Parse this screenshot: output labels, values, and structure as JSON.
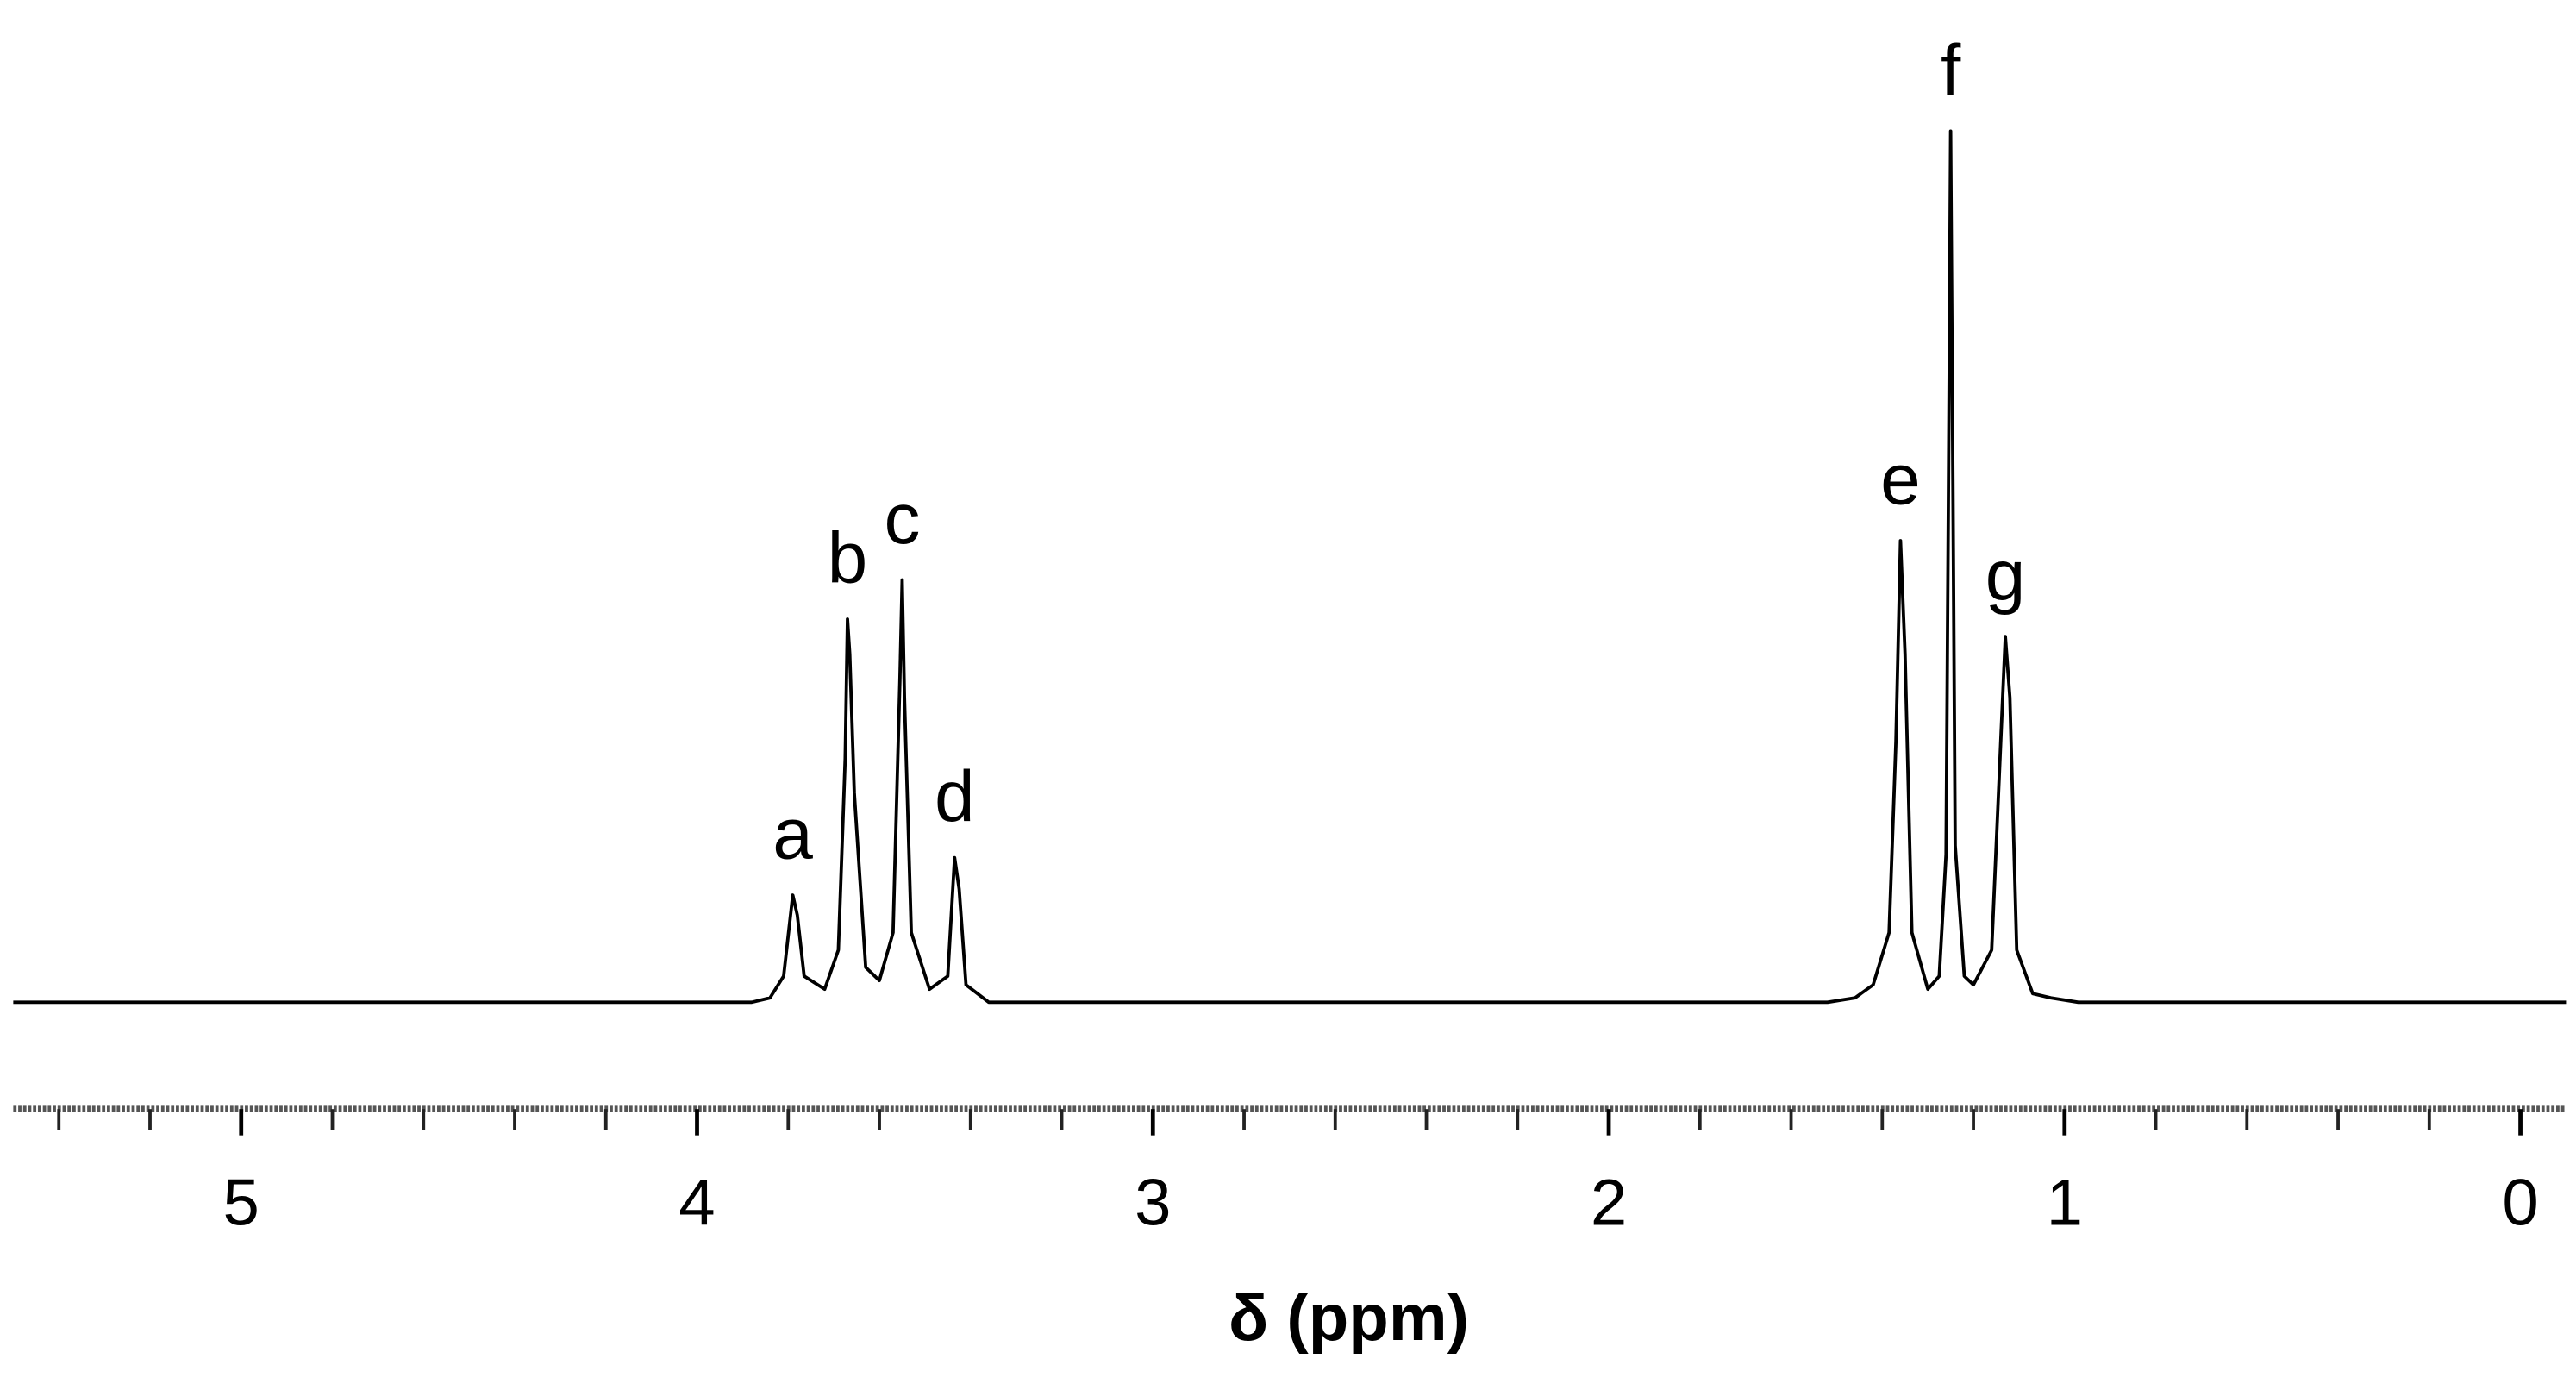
{
  "chart_data": {
    "type": "line",
    "xlabel": "δ (ppm)",
    "xlim": [
      5.5,
      -0.1
    ],
    "ylim": [
      0,
      110
    ],
    "xticks": [
      5,
      4,
      3,
      2,
      1,
      0
    ],
    "xminorticks": [
      5.4,
      5.2,
      4.8,
      4.6,
      4.4,
      4.2,
      3.8,
      3.6,
      3.4,
      3.2,
      2.8,
      2.6,
      2.4,
      2.2,
      1.8,
      1.6,
      1.4,
      1.2,
      0.8,
      0.6,
      0.4,
      0.2
    ],
    "peak_labels": [
      "a",
      "b",
      "c",
      "d",
      "e",
      "f",
      "g"
    ],
    "series": [
      {
        "color": "#000000",
        "x": [
          5.5,
          3.88,
          3.84,
          3.81,
          3.79,
          3.78,
          3.765,
          3.72,
          3.69,
          3.675,
          3.67,
          3.665,
          3.655,
          3.63,
          3.6,
          3.57,
          3.555,
          3.55,
          3.545,
          3.53,
          3.49,
          3.45,
          3.435,
          3.425,
          3.41,
          3.36,
          1.52,
          1.46,
          1.42,
          1.385,
          1.37,
          1.36,
          1.35,
          1.335,
          1.3,
          1.275,
          1.26,
          1.255,
          1.25,
          1.245,
          1.24,
          1.22,
          1.2,
          1.16,
          1.14,
          1.13,
          1.12,
          1.105,
          1.07,
          1.03,
          0.97,
          -0.1
        ],
        "values": [
          0,
          0,
          0.5,
          3,
          12.3,
          10,
          3,
          1.5,
          6,
          28,
          44,
          40,
          24,
          4,
          2.5,
          8,
          37,
          48.5,
          35,
          8,
          1.5,
          3,
          16.6,
          13,
          2,
          0,
          0,
          0.5,
          2,
          8,
          30,
          53,
          40,
          8,
          1.5,
          3,
          17,
          57,
          100,
          60,
          18,
          3,
          2,
          6,
          30,
          42,
          35,
          6,
          1,
          0.5,
          0,
          0
        ]
      }
    ]
  }
}
